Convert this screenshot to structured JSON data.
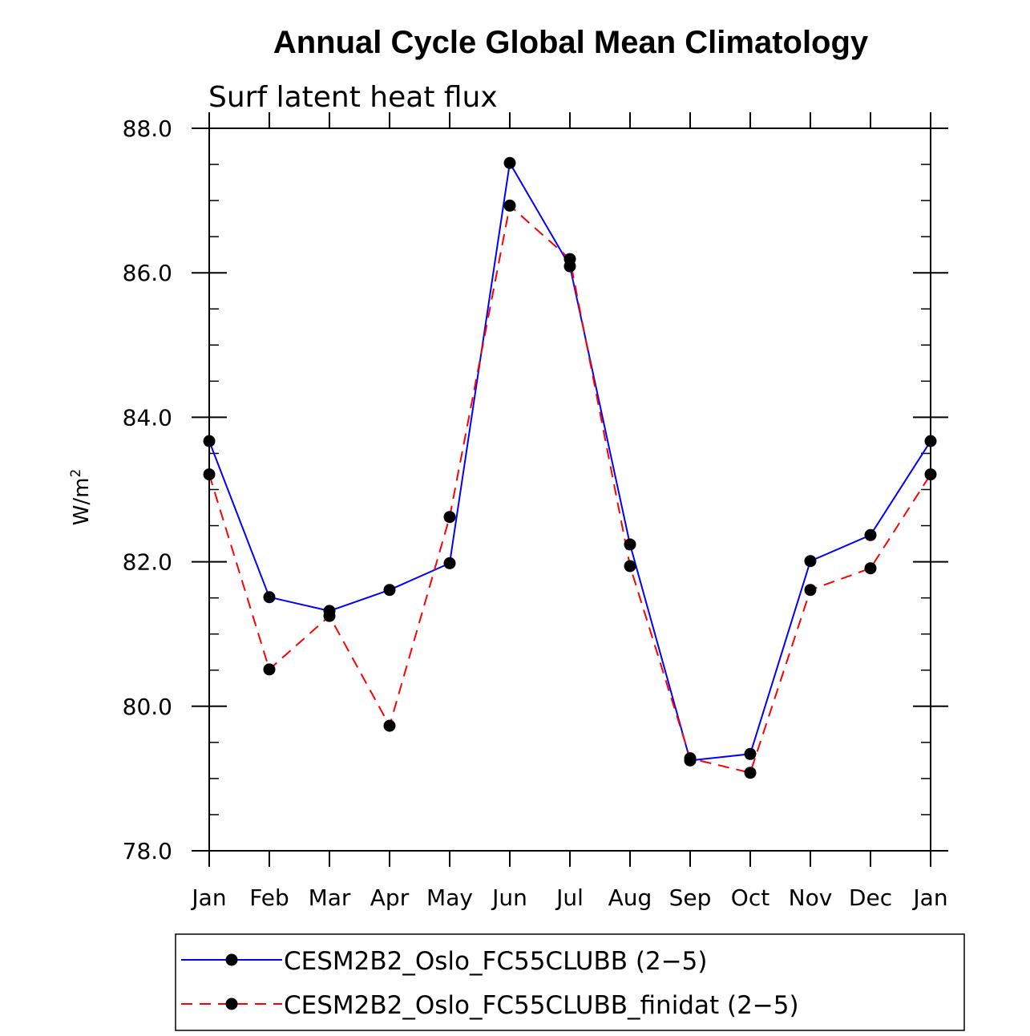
{
  "chart_data": {
    "type": "line",
    "title": "Annual Cycle Global Mean Climatology",
    "subtitle": "Surf latent heat flux",
    "ylabel": "W/m",
    "ylabel_sup": "2",
    "xlabel": "",
    "categories": [
      "Jan",
      "Feb",
      "Mar",
      "Apr",
      "May",
      "Jun",
      "Jul",
      "Aug",
      "Sep",
      "Oct",
      "Nov",
      "Dec",
      "Jan"
    ],
    "ylim": [
      78.0,
      88.0
    ],
    "yticks": [
      "78.0",
      "80.0",
      "82.0",
      "84.0",
      "86.0",
      "88.0"
    ],
    "grid": false,
    "legend_position": "bottom",
    "series": [
      {
        "name": "CESM2B2_Oslo_FC55CLUBB (2−5)",
        "color": "#0000ff",
        "dash": "solid",
        "values": [
          83.67,
          81.51,
          81.32,
          81.61,
          81.98,
          87.52,
          86.09,
          82.24,
          79.25,
          79.34,
          82.01,
          82.37,
          83.67
        ]
      },
      {
        "name": "CESM2B2_Oslo_FC55CLUBB_finidat (2−5)",
        "color": "#ff0000",
        "dash": "dashed",
        "values": [
          83.21,
          80.51,
          81.25,
          79.73,
          82.62,
          86.93,
          86.19,
          81.94,
          79.28,
          79.08,
          81.61,
          81.91,
          83.21
        ]
      }
    ]
  }
}
